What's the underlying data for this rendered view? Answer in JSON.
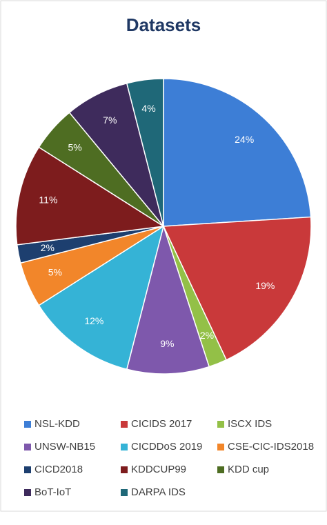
{
  "chart_data": {
    "type": "pie",
    "title": "Datasets",
    "categories": [
      "NSL-KDD",
      "CICIDS 2017",
      "ISCX IDS",
      "UNSW-NB15",
      "CICDDoS 2019",
      "CSE-CIC-IDS2018",
      "CICD2018",
      "KDDCUP99",
      "KDD cup",
      "BoT-IoT",
      "DARPA IDS"
    ],
    "values": [
      24,
      19,
      2,
      9,
      12,
      5,
      2,
      11,
      5,
      7,
      4
    ],
    "value_labels": [
      "24%",
      "19%",
      "2%",
      "9%",
      "12%",
      "5%",
      "2%",
      "11%",
      "5%",
      "7%",
      "4%"
    ],
    "colors": [
      "#3d7ed6",
      "#c9393a",
      "#93c047",
      "#7e58ac",
      "#35b3d6",
      "#f2862a",
      "#1d3f6f",
      "#7d1c1d",
      "#4e6d22",
      "#3e2b5c",
      "#1f6878"
    ],
    "legend": "bottom"
  }
}
